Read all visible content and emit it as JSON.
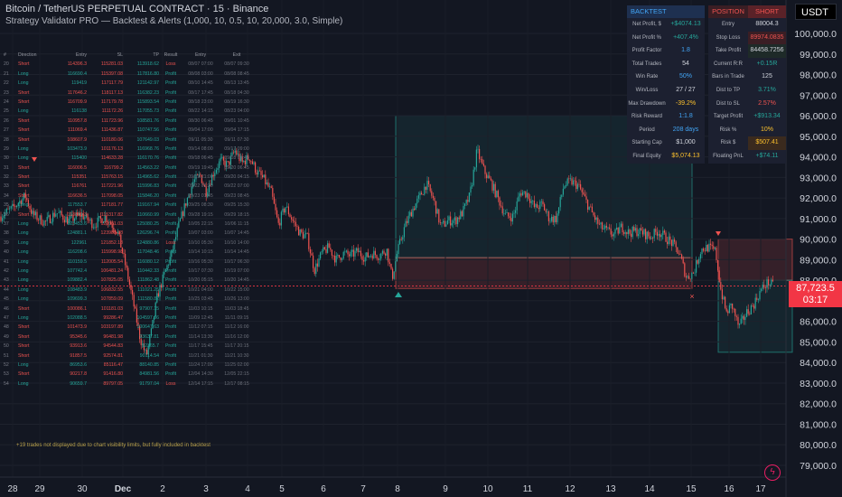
{
  "header": {
    "title": "Bitcoin / TetherUS PERPETUAL CONTRACT · 15 · Binance",
    "subtitle": "Strategy Validator PRO — Backtest & Alerts (1,000, 10, 0.5, 10, 20,000, 3.0, Simple)"
  },
  "currency": "USDT",
  "last_price": {
    "value": "87,723.5",
    "countdown": "03:17"
  },
  "colors": {
    "bg": "#131722",
    "up": "#26a69a",
    "down": "#ef5350",
    "accent": "#42a5f5"
  },
  "chart_data": {
    "type": "candlestick",
    "y_ticks": [
      79000,
      80000,
      81000,
      82000,
      83000,
      84000,
      85000,
      86000,
      87000,
      88000,
      89000,
      90000,
      91000,
      92000,
      93000,
      94000,
      95000,
      96000,
      97000,
      98000,
      99000,
      100000
    ],
    "y_tick_labels": [
      "79,000.0",
      "80,000.0",
      "81,000.0",
      "82,000.0",
      "83,000.0",
      "84,000.0",
      "85,000.0",
      "86,000.0",
      "87,000.0",
      "88,000.0",
      "89,000.0",
      "90,000.0",
      "91,000.0",
      "92,000.0",
      "93,000.0",
      "94,000.0",
      "95,000.0",
      "96,000.0",
      "97,000.0",
      "98,000.0",
      "99,000.0",
      "100,000.0"
    ],
    "ylim": [
      78500,
      101000
    ],
    "x_ticks": [
      "28",
      "29",
      "30",
      "Dec",
      "2",
      "3",
      "4",
      "5",
      "6",
      "7",
      "8",
      "9",
      "10",
      "11",
      "12",
      "13",
      "14",
      "15",
      "16",
      "17"
    ],
    "price_path": [
      [
        0,
        91100
      ],
      [
        14,
        91500
      ],
      [
        28,
        92100
      ],
      [
        36,
        91200
      ],
      [
        50,
        90800
      ],
      [
        62,
        91300
      ],
      [
        76,
        90900
      ],
      [
        90,
        91200
      ],
      [
        104,
        90700
      ],
      [
        116,
        91100
      ],
      [
        130,
        90400
      ],
      [
        140,
        88500
      ],
      [
        148,
        86800
      ],
      [
        155,
        85200
      ],
      [
        162,
        84300
      ],
      [
        168,
        85600
      ],
      [
        174,
        87200
      ],
      [
        182,
        88300
      ],
      [
        190,
        89300
      ],
      [
        198,
        90700
      ],
      [
        206,
        91800
      ],
      [
        214,
        92800
      ],
      [
        222,
        93100
      ],
      [
        228,
        92300
      ],
      [
        236,
        93200
      ],
      [
        244,
        93800
      ],
      [
        252,
        93600
      ],
      [
        260,
        94300
      ],
      [
        268,
        93700
      ],
      [
        276,
        94000
      ],
      [
        284,
        93300
      ],
      [
        292,
        92900
      ],
      [
        300,
        92300
      ],
      [
        308,
        90700
      ],
      [
        316,
        91600
      ],
      [
        324,
        90900
      ],
      [
        332,
        90300
      ],
      [
        340,
        90100
      ],
      [
        348,
        88500
      ],
      [
        356,
        89300
      ],
      [
        364,
        89600
      ],
      [
        372,
        89000
      ],
      [
        380,
        89300
      ],
      [
        388,
        89200
      ],
      [
        396,
        89400
      ],
      [
        404,
        89100
      ],
      [
        412,
        89300
      ],
      [
        420,
        89200
      ],
      [
        428,
        89500
      ],
      [
        434,
        88100
      ],
      [
        440,
        89400
      ],
      [
        448,
        90600
      ],
      [
        456,
        91400
      ],
      [
        464,
        92000
      ],
      [
        472,
        92700
      ],
      [
        480,
        91900
      ],
      [
        488,
        90600
      ],
      [
        496,
        90900
      ],
      [
        504,
        90900
      ],
      [
        512,
        91300
      ],
      [
        520,
        92100
      ],
      [
        528,
        94300
      ],
      [
        536,
        93300
      ],
      [
        544,
        92700
      ],
      [
        552,
        91900
      ],
      [
        560,
        91100
      ],
      [
        568,
        91100
      ],
      [
        576,
        92300
      ],
      [
        584,
        92200
      ],
      [
        592,
        91500
      ],
      [
        600,
        91700
      ],
      [
        608,
        91000
      ],
      [
        616,
        91000
      ],
      [
        624,
        92600
      ],
      [
        632,
        92800
      ],
      [
        640,
        92600
      ],
      [
        648,
        91900
      ],
      [
        656,
        91200
      ],
      [
        664,
        90600
      ],
      [
        672,
        90400
      ],
      [
        680,
        90200
      ],
      [
        688,
        90600
      ],
      [
        696,
        90300
      ],
      [
        704,
        90400
      ],
      [
        712,
        90300
      ],
      [
        720,
        90100
      ],
      [
        728,
        90400
      ],
      [
        736,
        90100
      ],
      [
        744,
        89800
      ],
      [
        752,
        89300
      ],
      [
        760,
        88100
      ],
      [
        768,
        88400
      ],
      [
        776,
        89500
      ],
      [
        784,
        89600
      ],
      [
        792,
        89400
      ],
      [
        798,
        87500
      ],
      [
        804,
        86400
      ],
      [
        810,
        86800
      ],
      [
        818,
        85700
      ],
      [
        826,
        86400
      ],
      [
        834,
        86800
      ],
      [
        842,
        87500
      ],
      [
        850,
        87900
      ],
      [
        856,
        87723
      ]
    ],
    "trade_zones": [
      {
        "type": "long",
        "entry": 89100,
        "stop": 87600,
        "target": 96000
      },
      {
        "type": "short",
        "entry": 88000,
        "stop": 90000,
        "target": 84500
      }
    ],
    "current_price": 87723.5
  },
  "trades": {
    "headers": [
      "#",
      "Direction",
      "Entry",
      "SL",
      "TP",
      "Result",
      "Entry",
      "Exit"
    ],
    "rows": [
      [
        "20",
        "Short",
        "114396.3",
        "115281.03",
        "113918.62",
        "Loss",
        "08/07 07:00",
        "08/07 09:30"
      ],
      [
        "21",
        "Long",
        "116690.4",
        "115397.08",
        "117816.80",
        "Profit",
        "08/08 03:00",
        "08/08 08:45"
      ],
      [
        "22",
        "Long",
        "119419",
        "117117.79",
        "121142.97",
        "Profit",
        "08/10 14:45",
        "08/13 13:45"
      ],
      [
        "23",
        "Short",
        "117646.2",
        "118117.13",
        "116382.23",
        "Profit",
        "08/17 17:45",
        "08/18 04:30"
      ],
      [
        "24",
        "Short",
        "116709.9",
        "117179.78",
        "115893.54",
        "Profit",
        "08/18 23:00",
        "08/19 16:30"
      ],
      [
        "25",
        "Long",
        "116138",
        "111172.26",
        "117055.73",
        "Profit",
        "08/22 14:15",
        "08/23 04:00"
      ],
      [
        "26",
        "Short",
        "110957.8",
        "111723.96",
        "108581.76",
        "Profit",
        "08/30 06:45",
        "09/01 10:45"
      ],
      [
        "27",
        "Short",
        "111069.4",
        "111436.87",
        "110747.56",
        "Profit",
        "09/04 17:00",
        "09/04 17:15"
      ],
      [
        "28",
        "Short",
        "108607.9",
        "110180.06",
        "107649.03",
        "Profit",
        "09/11 05:30",
        "09/11 07:30"
      ],
      [
        "29",
        "Long",
        "103473.9",
        "101176.13",
        "116968.76",
        "Profit",
        "09/14 08:00",
        "09/17 09:00"
      ],
      [
        "30",
        "Long",
        "115400",
        "114633.28",
        "116170.76",
        "Profit",
        "09/18 06:45",
        "09/18 09:45"
      ],
      [
        "31",
        "Short",
        "116006.5",
        "116799.2",
        "114563.22",
        "Profit",
        "09/19 19:45",
        "09/20 06:45"
      ],
      [
        "32",
        "Short",
        "115351",
        "115763.15",
        "114965.62",
        "Profit",
        "09/19 21:00",
        "09/20 04:15"
      ],
      [
        "33",
        "Short",
        "116761",
        "117221.96",
        "115996.83",
        "Profit",
        "09/22 01:30",
        "09/22 07:00"
      ],
      [
        "34",
        "Short",
        "116636.5",
        "117098.05",
        "115846.20",
        "Profit",
        "09/23 01:45",
        "09/23 08:45"
      ],
      [
        "35",
        "Long",
        "117553.7",
        "117181.77",
        "119167.94",
        "Profit",
        "09/25 08:30",
        "09/25 15:30"
      ],
      [
        "36",
        "Short",
        "113890.3",
        "115317.82",
        "110660.99",
        "Profit",
        "09/28 19:15",
        "09/29 18:15"
      ],
      [
        "37",
        "Long",
        "123453.6",
        "122081.03",
        "125080.25",
        "Profit",
        "10/05 22:15",
        "10/06 11:15"
      ],
      [
        "38",
        "Long",
        "124881.1",
        "123988.38",
        "126296.74",
        "Profit",
        "10/07 03:00",
        "10/07 14:45"
      ],
      [
        "39",
        "Long",
        "122961",
        "121852.18",
        "124880.86",
        "Loss",
        "10/10 05:30",
        "10/10 14:00"
      ],
      [
        "40",
        "Long",
        "116208.6",
        "115998.98",
        "117048.46",
        "Profit",
        "10/14 10:15",
        "10/14 14:45"
      ],
      [
        "41",
        "Long",
        "110159.5",
        "112005.54",
        "116080.12",
        "Profit",
        "10/16 05:30",
        "10/17 06:30"
      ],
      [
        "42",
        "Long",
        "107742.4",
        "106481.24",
        "110442.33",
        "Profit",
        "10/17 07:30",
        "10/19 07:00"
      ],
      [
        "43",
        "Long",
        "109882.4",
        "107825.05",
        "111862.48",
        "Profit",
        "10/20 05:15",
        "10/20 14:45"
      ],
      [
        "44",
        "Long",
        "108483.9",
        "106832.55",
        "111021.25",
        "Profit",
        "10/21 04:00",
        "10/22 15:00"
      ],
      [
        "45",
        "Long",
        "109699.3",
        "107859.09",
        "111580.82",
        "Profit",
        "10/25 03:45",
        "10/26 13:00"
      ],
      [
        "46",
        "Short",
        "100086.1",
        "101181.03",
        "97907.15",
        "Profit",
        "11/03 10:15",
        "11/03 18:45"
      ],
      [
        "47",
        "Long",
        "102088.5",
        "99286.47",
        "104597.66",
        "Profit",
        "11/09 12:45",
        "11/11 09:15"
      ],
      [
        "48",
        "Short",
        "101473.9",
        "103197.89",
        "100647.63",
        "Profit",
        "11/12 07:15",
        "11/12 16:00"
      ],
      [
        "49",
        "Short",
        "95345.6",
        "96481.98",
        "93637.81",
        "Profit",
        "11/14 13:30",
        "11/16 12:00"
      ],
      [
        "50",
        "Short",
        "93913.6",
        "94544.83",
        "92365.7",
        "Profit",
        "11/17 15:45",
        "11/17 20:15"
      ],
      [
        "51",
        "Short",
        "91857.5",
        "92574.81",
        "90114.54",
        "Profit",
        "11/21 01:30",
        "11/21 10:30"
      ],
      [
        "52",
        "Long",
        "86953.6",
        "85116.47",
        "88140.85",
        "Profit",
        "11/24 17:00",
        "11/25 02:00"
      ],
      [
        "53",
        "Short",
        "90217.8",
        "91416.80",
        "84981.56",
        "Profit",
        "12/04 14:30",
        "12/05 22:15"
      ],
      [
        "54",
        "Long",
        "90659.7",
        "89797.05",
        "91797.04",
        "Loss",
        "12/14 17:15",
        "12/17 08:15"
      ]
    ],
    "note": "+19 trades not displayed due to chart visibility limits, but fully included in backtest"
  },
  "stats": {
    "backtest_title": "BACKTEST",
    "position_title": "POSITION",
    "position_side": "SHORT",
    "left": [
      [
        "Net Profit, $",
        "+$4074.13"
      ],
      [
        "Net Profit %",
        "+407.4%"
      ],
      [
        "Profit Factor",
        "1.8"
      ],
      [
        "Total Trades",
        "54"
      ],
      [
        "Win Rate",
        "50%"
      ],
      [
        "Win/Loss",
        "27 / 27"
      ],
      [
        "Max Drawdown",
        "-39.2%"
      ],
      [
        "Risk Reward",
        "1:1.8"
      ],
      [
        "Period",
        "208 days"
      ],
      [
        "Starting Cap",
        "$1,000"
      ],
      [
        "Final Equity",
        "$5,074.13"
      ]
    ],
    "right": [
      [
        "Entry",
        "88004.3"
      ],
      [
        "Stop Loss",
        "89974.0835"
      ],
      [
        "Take Profit",
        "84458.7256"
      ],
      [
        "Current R:R",
        "+0.15R"
      ],
      [
        "Bars in Trade",
        "125"
      ],
      [
        "Dist to TP",
        "3.71%"
      ],
      [
        "Dist to SL",
        "2.57%"
      ],
      [
        "Target Profit",
        "+$913.34"
      ],
      [
        "Risk %",
        "10%"
      ],
      [
        "Risk $",
        "$507.41"
      ],
      [
        "Floating PnL",
        "+$74.11"
      ]
    ]
  }
}
